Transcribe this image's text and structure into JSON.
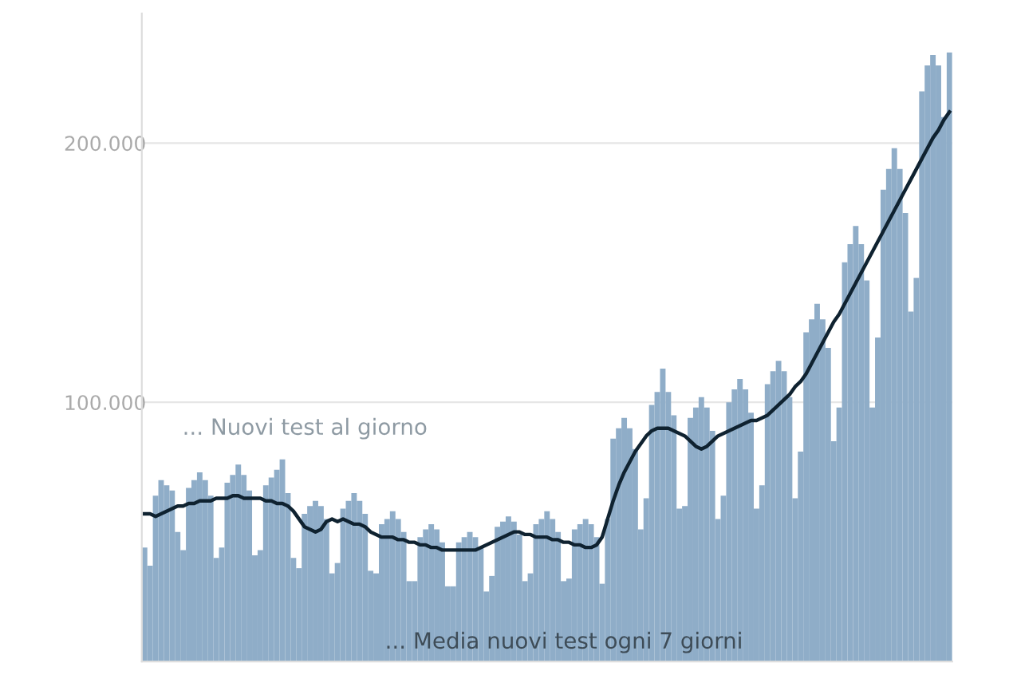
{
  "chart_data": {
    "type": "bar",
    "categories": [
      null,
      null,
      null,
      null,
      null,
      null,
      null,
      null,
      null,
      null,
      null,
      null,
      null,
      null,
      null,
      null,
      null,
      null,
      null,
      null,
      null,
      null,
      null,
      null,
      null,
      null,
      null,
      null,
      null,
      null,
      null,
      null,
      null,
      null,
      null,
      null,
      null,
      null,
      null,
      null,
      null,
      null,
      null,
      null,
      null,
      null,
      null,
      null,
      null,
      null,
      null,
      null,
      null,
      null,
      null,
      null,
      null,
      null,
      null,
      null,
      null,
      null,
      null,
      null,
      null,
      null,
      null,
      null,
      null,
      null,
      null,
      null,
      null,
      null,
      null,
      null,
      null,
      null,
      null,
      null,
      null,
      null,
      null,
      null,
      null,
      null,
      null,
      null,
      null,
      null,
      null,
      null,
      null,
      null,
      null,
      null,
      null,
      null,
      null,
      null,
      null,
      null,
      null,
      null,
      null,
      null,
      null,
      null,
      null,
      null,
      null,
      null,
      null,
      null,
      null,
      null,
      null,
      null,
      null,
      null,
      null,
      null,
      null,
      null,
      null,
      null,
      null,
      null,
      null,
      null,
      null,
      null,
      null,
      null,
      null,
      null,
      null,
      null,
      null,
      null,
      null,
      null,
      null,
      null,
      null,
      null,
      null
    ],
    "series": [
      {
        "color": "#8fadc8",
        "values": [
          44000,
          37000,
          64000,
          70000,
          68000,
          66000,
          50000,
          43000,
          67000,
          70000,
          73000,
          70000,
          64000,
          40000,
          44000,
          69000,
          72000,
          76000,
          72000,
          66000,
          41000,
          43000,
          68000,
          71000,
          74000,
          78000,
          65000,
          40000,
          36000,
          57000,
          60000,
          62000,
          60000,
          55000,
          34000,
          38000,
          59000,
          62000,
          65000,
          62000,
          57000,
          35000,
          34000,
          53000,
          55000,
          58000,
          55000,
          50000,
          31000,
          31000,
          48000,
          51000,
          53000,
          51000,
          46000,
          29000,
          29000,
          46000,
          48000,
          50000,
          48000,
          44000,
          27000,
          33000,
          52000,
          54000,
          56000,
          54000,
          49000,
          31000,
          34000,
          53000,
          55000,
          58000,
          55000,
          50000,
          31000,
          32000,
          51000,
          53000,
          55000,
          53000,
          48000,
          30000,
          55000,
          86000,
          90000,
          94000,
          90000,
          82000,
          51000,
          63000,
          99000,
          104000,
          113000,
          104000,
          95000,
          59000,
          60000,
          94000,
          98000,
          102000,
          98000,
          89000,
          55000,
          64000,
          100000,
          105000,
          109000,
          105000,
          96000,
          59000,
          68000,
          107000,
          112000,
          116000,
          112000,
          102000,
          63000,
          81000,
          127000,
          132000,
          138000,
          132000,
          121000,
          85000,
          98000,
          154000,
          161000,
          168000,
          161000,
          147000,
          98000,
          125000,
          182000,
          190000,
          198000,
          190000,
          173000,
          135000,
          148000,
          220000,
          230000,
          234000,
          230000,
          210000,
          235000
        ]
      },
      {
        "type": "line",
        "color": "#0f2230",
        "values": [
          57000,
          57000,
          56000,
          57000,
          58000,
          59000,
          60000,
          60000,
          61000,
          61000,
          62000,
          62000,
          62000,
          63000,
          63000,
          63000,
          64000,
          64000,
          63000,
          63000,
          63000,
          63000,
          62000,
          62000,
          61000,
          61000,
          60000,
          58000,
          55000,
          52000,
          51000,
          50000,
          51000,
          54000,
          55000,
          54000,
          55000,
          54000,
          53000,
          53000,
          52000,
          50000,
          49000,
          48000,
          48000,
          48000,
          47000,
          47000,
          46000,
          46000,
          45000,
          45000,
          44000,
          44000,
          43000,
          43000,
          43000,
          43000,
          43000,
          43000,
          43000,
          44000,
          45000,
          46000,
          47000,
          48000,
          49000,
          50000,
          50000,
          49000,
          49000,
          48000,
          48000,
          48000,
          47000,
          47000,
          46000,
          46000,
          45000,
          45000,
          44000,
          44000,
          45000,
          48000,
          55000,
          62000,
          68000,
          73000,
          77000,
          81000,
          84000,
          87000,
          89000,
          90000,
          90000,
          90000,
          89000,
          88000,
          87000,
          85000,
          83000,
          82000,
          83000,
          85000,
          87000,
          88000,
          89000,
          90000,
          91000,
          92000,
          93000,
          93000,
          94000,
          95000,
          97000,
          99000,
          101000,
          103000,
          106000,
          108000,
          111000,
          115000,
          119000,
          123000,
          127000,
          131000,
          134000,
          138000,
          142000,
          146000,
          150000,
          154000,
          158000,
          162000,
          166000,
          170000,
          174000,
          178000,
          182000,
          186000,
          190000,
          194000,
          198000,
          202000,
          205000,
          209000,
          212000
        ]
      }
    ],
    "ylim": [
      0,
      250000
    ],
    "yticks": [
      {
        "value": 100000,
        "label": "100.000"
      },
      {
        "value": 200000,
        "label": "200.000"
      }
    ],
    "grid": "y",
    "tick_labels": "y",
    "annotations": [
      "... Nuovi test al giorno",
      "... Media nuovi test ogni 7 giorni"
    ]
  }
}
